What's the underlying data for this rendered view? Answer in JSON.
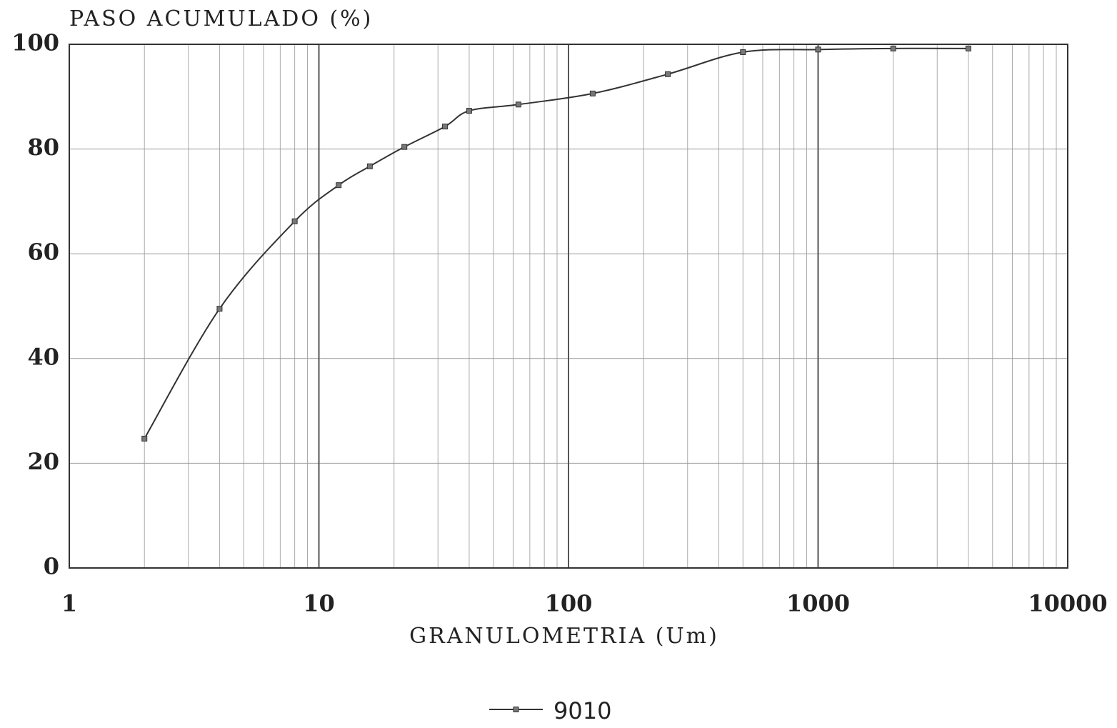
{
  "chart_data": {
    "type": "line",
    "title": "PASO ACUMULADO (%)",
    "x_label": "GRANULOMETRIA (Um)",
    "x": [
      2,
      4,
      8,
      12,
      16,
      22,
      32,
      40,
      63,
      125,
      250,
      500,
      1000,
      2000,
      4000
    ],
    "series": [
      {
        "name": "9010",
        "color": "#333333",
        "values": [
          24.7,
          49.5,
          66.2,
          73.1,
          76.7,
          80.4,
          84.3,
          87.3,
          88.5,
          90.6,
          94.3,
          98.5,
          99.0,
          99.2,
          99.2
        ]
      }
    ],
    "xscale": "log",
    "xlim": [
      1,
      10000
    ],
    "xticks": [
      1,
      10,
      100,
      1000,
      10000
    ],
    "x_minor_grid": [
      2,
      3,
      4,
      5,
      6,
      7,
      8,
      9,
      20,
      30,
      40,
      50,
      60,
      70,
      80,
      90,
      200,
      300,
      400,
      500,
      600,
      700,
      800,
      900,
      2000,
      3000,
      4000,
      5000,
      6000,
      7000,
      8000,
      9000
    ],
    "ylim": [
      0,
      100
    ],
    "yticks": [
      0,
      20,
      40,
      60,
      80,
      100
    ],
    "grid": true,
    "legend": "bottom"
  }
}
